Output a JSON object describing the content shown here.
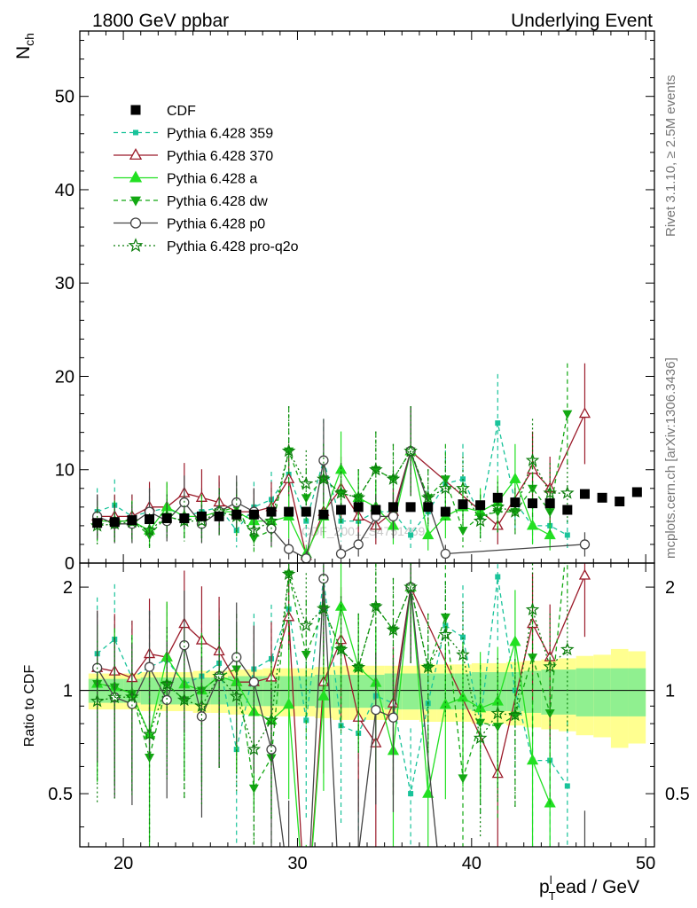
{
  "header": {
    "left": "1800 GeV ppbar",
    "right": "Underlying Event"
  },
  "side_labels": {
    "rivet": "Rivet 3.1.10, ≥ 2.5M events",
    "mcplots": "mcplots.cern.ch [arXiv:1306.3436]"
  },
  "watermark": "CDF_2001_S4751469",
  "colors": {
    "cdf": "#000000",
    "p359": "#19c39a",
    "p370": "#9b1b2a",
    "pa": "#22e022",
    "pdw": "#12a812",
    "pp0": "#444444",
    "pq2o": "#0b7d0b",
    "band_stat": "#90f090",
    "band_total": "#ffff90"
  },
  "chart_data": [
    {
      "type": "scatter",
      "panel": "main",
      "ylabel_main": "N",
      "ylabel_sub": "ch",
      "xlim": [
        17.5,
        50.5
      ],
      "ylim": [
        0,
        57
      ],
      "yticks": [
        0,
        10,
        20,
        30,
        40,
        50
      ],
      "series": [
        {
          "name": "CDF",
          "key": "cdf",
          "x": [
            18.5,
            19.5,
            20.5,
            21.5,
            22.5,
            23.5,
            24.5,
            25.5,
            26.5,
            27.5,
            28.5,
            29.5,
            30.5,
            31.5,
            32.5,
            33.5,
            34.5,
            35.5,
            36.5,
            37.5,
            38.5,
            39.5,
            40.5,
            41.5,
            42.5,
            43.5,
            44.5,
            45.5,
            46.5,
            47.5,
            48.5,
            49.5
          ],
          "y": [
            4.3,
            4.4,
            4.6,
            4.7,
            4.8,
            4.8,
            5.0,
            5.0,
            5.2,
            5.2,
            5.5,
            5.5,
            5.5,
            5.2,
            5.7,
            6.0,
            5.7,
            6.0,
            6.0,
            6.0,
            5.5,
            6.3,
            6.2,
            7.0,
            6.5,
            6.4,
            6.4,
            5.7,
            7.4,
            7.0,
            6.6,
            7.6
          ]
        },
        {
          "name": "Pythia 6.428 359",
          "key": "p359",
          "x": [
            18.5,
            19.5,
            20.5,
            21.5,
            22.5,
            23.5,
            24.5,
            25.5,
            26.5,
            27.5,
            28.5,
            29.5,
            30.5,
            31.5,
            32.5,
            33.5,
            34.5,
            35.5,
            36.5,
            37.5,
            38.5,
            39.5,
            40.5,
            41.5,
            42.5,
            43.5,
            44.5,
            45.5
          ],
          "y": [
            5.5,
            6.2,
            5.0,
            5.5,
            5.9,
            5.0,
            5.5,
            6.0,
            3.5,
            6.0,
            6.8,
            9.5,
            4.5,
            11.0,
            4.5,
            4.5,
            5.5,
            5.5,
            3.0,
            5.5,
            8.5,
            9.0,
            5.0,
            15.0,
            6.5,
            4.0,
            4.0,
            3.0
          ]
        },
        {
          "name": "Pythia 6.428 370",
          "key": "p370",
          "x": [
            18.5,
            19.5,
            20.5,
            21.5,
            22.5,
            23.5,
            24.5,
            25.5,
            26.5,
            27.5,
            28.5,
            29.5,
            30.5,
            31.5,
            32.5,
            33.5,
            34.5,
            35.5,
            36.5,
            41.5,
            43.5,
            44.5,
            46.5
          ],
          "y": [
            5.0,
            5.0,
            5.0,
            6.0,
            6.0,
            7.5,
            7.0,
            6.5,
            5.5,
            5.5,
            6.0,
            9.0,
            0.8,
            5.5,
            8.0,
            5.0,
            4.0,
            5.5,
            12.0,
            4.0,
            10.0,
            8.0,
            16.0
          ]
        },
        {
          "name": "Pythia 6.428 a",
          "key": "pa",
          "x": [
            18.5,
            19.5,
            20.5,
            21.5,
            22.5,
            23.5,
            24.5,
            25.5,
            26.5,
            27.5,
            28.5,
            29.5,
            30.5,
            31.5,
            32.5,
            33.5,
            34.5,
            35.5,
            36.5,
            37.5,
            38.5,
            39.5,
            40.5,
            41.5,
            42.5,
            43.5,
            44.5
          ],
          "y": [
            4.5,
            4.5,
            4.5,
            3.5,
            6.0,
            5.0,
            5.0,
            5.5,
            5.5,
            4.5,
            4.5,
            5.0,
            1.0,
            5.0,
            10.0,
            7.0,
            6.0,
            4.0,
            12.0,
            3.0,
            5.0,
            6.0,
            5.5,
            6.5,
            9.0,
            4.0,
            3.0
          ]
        },
        {
          "name": "Pythia 6.428 dw",
          "key": "pdw",
          "x": [
            18.5,
            19.5,
            20.5,
            21.5,
            22.5,
            23.5,
            24.5,
            25.5,
            26.5,
            27.5,
            28.5,
            29.5,
            30.5,
            31.5,
            32.5,
            33.5,
            34.5,
            35.5,
            36.5,
            37.5,
            38.5,
            39.5,
            40.5,
            41.5,
            42.5,
            43.5,
            44.5,
            45.5
          ],
          "y": [
            4.5,
            4.5,
            4.5,
            3.0,
            5.0,
            4.5,
            5.0,
            5.5,
            6.0,
            2.7,
            3.5,
            12.0,
            7.0,
            9.0,
            7.5,
            7.0,
            10.0,
            9.0,
            12.0,
            7.0,
            9.0,
            3.5,
            5.0,
            5.5,
            5.5,
            8.0,
            5.5,
            16.0
          ]
        },
        {
          "name": "Pythia 6.428 p0",
          "key": "pp0",
          "x": [
            18.5,
            19.5,
            20.5,
            21.5,
            22.5,
            23.5,
            24.5,
            25.5,
            26.5,
            27.5,
            28.5,
            29.5,
            30.5,
            31.5,
            32.5,
            33.5,
            34.5,
            35.5,
            36.5,
            38.5,
            46.5
          ],
          "y": [
            5.0,
            4.2,
            4.2,
            5.5,
            4.5,
            6.5,
            4.2,
            5.5,
            6.5,
            5.5,
            3.7,
            1.5,
            0.5,
            11.0,
            1.0,
            2.0,
            5.0,
            5.0,
            12.0,
            1.0,
            2.0
          ]
        },
        {
          "name": "Pythia 6.428 pro-q2o",
          "key": "pq2o",
          "x": [
            18.5,
            19.5,
            20.5,
            21.5,
            22.5,
            23.5,
            24.5,
            25.5,
            26.5,
            27.5,
            28.5,
            29.5,
            30.5,
            31.5,
            32.5,
            33.5,
            34.5,
            35.5,
            36.5,
            37.5,
            38.5,
            39.5,
            40.5,
            41.5,
            42.5,
            43.5,
            44.5,
            45.5
          ],
          "y": [
            4.0,
            4.2,
            4.4,
            3.5,
            5.0,
            4.5,
            4.5,
            5.5,
            5.0,
            3.5,
            4.5,
            12.0,
            8.5,
            9.0,
            7.5,
            7.0,
            10.0,
            9.0,
            12.0,
            7.0,
            8.0,
            8.0,
            4.5,
            6.0,
            5.5,
            11.0,
            7.5,
            7.5
          ]
        }
      ]
    },
    {
      "type": "scatter",
      "panel": "ratio",
      "xlabel": "p",
      "xlabel_sub": "T",
      "xlabel_sup": "l",
      "xlabel_rest": "ead / GeV",
      "ylabel": "Ratio to CDF",
      "xlim": [
        17.5,
        50.5
      ],
      "ylim": [
        0.35,
        2.35
      ],
      "yticks": [
        0.5,
        1,
        2
      ],
      "xticks": [
        20,
        30,
        40,
        50
      ],
      "band_stat": [
        0.08,
        0.08,
        0.08,
        0.09,
        0.09,
        0.09,
        0.09,
        0.09,
        0.1,
        0.1,
        0.1,
        0.1,
        0.1,
        0.11,
        0.11,
        0.11,
        0.11,
        0.12,
        0.12,
        0.12,
        0.12,
        0.12,
        0.13,
        0.13,
        0.13,
        0.14,
        0.15,
        0.15,
        0.16,
        0.16,
        0.16,
        0.16
      ],
      "band_total": [
        0.12,
        0.12,
        0.12,
        0.13,
        0.13,
        0.13,
        0.14,
        0.14,
        0.15,
        0.15,
        0.16,
        0.16,
        0.16,
        0.17,
        0.18,
        0.18,
        0.18,
        0.18,
        0.18,
        0.19,
        0.19,
        0.19,
        0.2,
        0.2,
        0.21,
        0.22,
        0.23,
        0.24,
        0.26,
        0.27,
        0.32,
        0.3
      ]
    }
  ]
}
